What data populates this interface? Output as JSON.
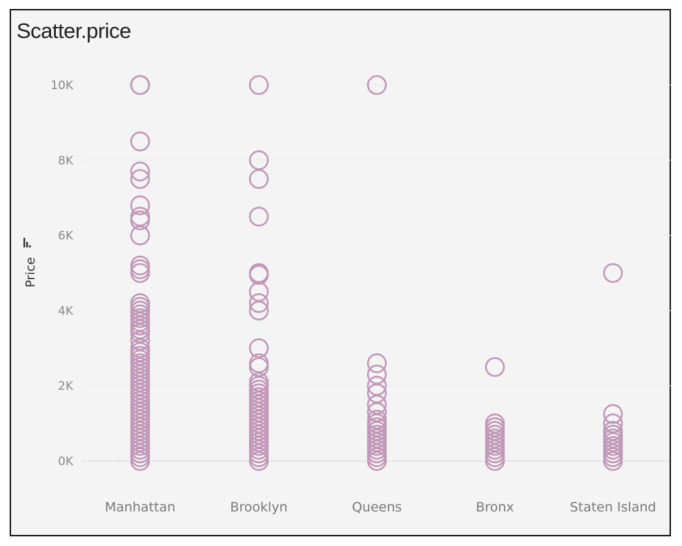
{
  "chart_data": {
    "type": "scatter",
    "title": "Scatter.price",
    "xlabel": "",
    "ylabel": "Price",
    "y_ticks": [
      "0K",
      "2K",
      "4K",
      "6K",
      "8K",
      "10K"
    ],
    "ylim": [
      -1000,
      10500
    ],
    "grid": true,
    "legend": "none",
    "marker": "open-circle",
    "color": "#c198b7",
    "categories": [
      "Manhattan",
      "Brooklyn",
      "Queens",
      "Bronx",
      "Staten Island"
    ],
    "series": [
      {
        "category": "Manhattan",
        "values": [
          10000,
          10000,
          10000,
          8500,
          7700,
          7500,
          6800,
          6500,
          6400,
          6000,
          5200,
          5100,
          5000,
          4200,
          4100,
          4000,
          3900,
          3800,
          3700,
          3600,
          3500,
          3400,
          3200,
          3000,
          2900,
          2800,
          2700,
          2600,
          2500,
          2400,
          2300,
          2200,
          2100,
          2000,
          1900,
          1800,
          1700,
          1600,
          1500,
          1400,
          1300,
          1200,
          1100,
          1000,
          900,
          800,
          700,
          600,
          500,
          400,
          300,
          200,
          100,
          0
        ]
      },
      {
        "category": "Brooklyn",
        "values": [
          10000,
          8000,
          7500,
          6500,
          5000,
          4950,
          4500,
          4200,
          4000,
          3000,
          2600,
          2500,
          2100,
          2000,
          1900,
          1800,
          1700,
          1600,
          1500,
          1400,
          1300,
          1200,
          1100,
          1000,
          900,
          800,
          700,
          600,
          500,
          400,
          300,
          200,
          100,
          0
        ]
      },
      {
        "category": "Queens",
        "values": [
          10000,
          2600,
          2300,
          2000,
          1800,
          1500,
          1300,
          1100,
          1000,
          900,
          800,
          700,
          600,
          500,
          400,
          300,
          200,
          100,
          0
        ]
      },
      {
        "category": "Bronx",
        "values": [
          2500,
          1000,
          900,
          800,
          700,
          600,
          500,
          400,
          300,
          200,
          100,
          0
        ]
      },
      {
        "category": "Staten Island",
        "values": [
          5000,
          1250,
          1000,
          800,
          700,
          600,
          500,
          400,
          300,
          200,
          100,
          0
        ]
      }
    ]
  }
}
